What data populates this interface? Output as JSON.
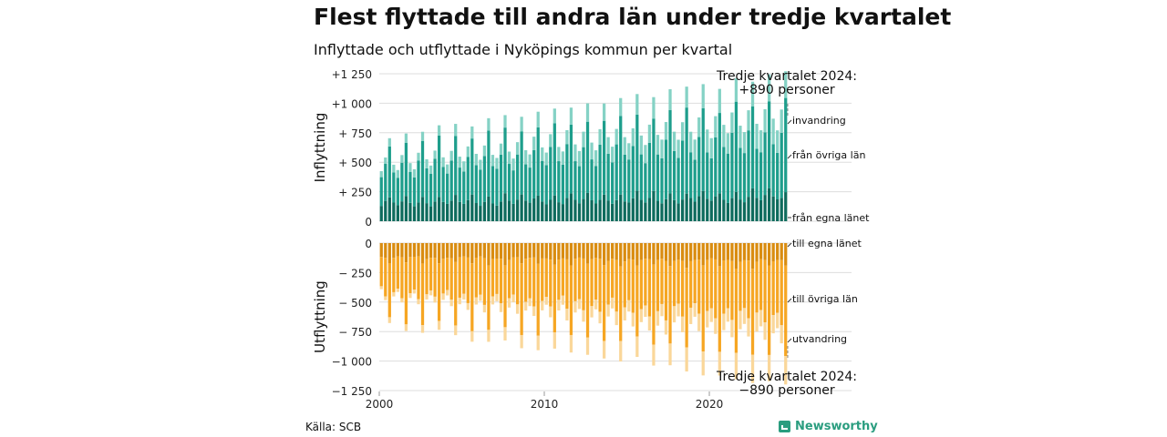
{
  "title": "Flest flyttade till andra län under tredje kvartalet",
  "subtitle": "Inflyttade och utflyttade i Nyköpings kommun per kvartal",
  "source": "Källa: SCB",
  "brand": "Newsworthy",
  "colors": {
    "invandring": "#85d2c5",
    "fran_ovriga_lan": "#1e9e8c",
    "fran_egna_lanet": "#0e6b5d",
    "till_egna_lanet": "#d98c10",
    "till_ovriga_lan": "#f6a623",
    "utvandring": "#fad79a",
    "grid": "#dddddd"
  },
  "chart_data": {
    "type": "bar",
    "stacked": true,
    "x_start": "2000 Q1",
    "x_end": "2024 Q3",
    "frequency": "quarterly",
    "xticks": [
      "2000",
      "2010",
      "2020"
    ],
    "panels": [
      {
        "ylabel": "Inflyttning",
        "ylim": [
          0,
          1250
        ],
        "yticks": [
          "0",
          "+ 250",
          "+ 500",
          "+ 750",
          "+1 000",
          "+1 250"
        ],
        "series": [
          {
            "name": "från egna länet",
            "seasonal": [
              130,
              160,
              200,
              150
            ],
            "trend_start": 120,
            "trend_end": 160
          },
          {
            "name": "från övriga län",
            "seasonal": [
              240,
              320,
              440,
              260
            ],
            "trend_start": 240,
            "trend_end": 420
          },
          {
            "name": "invandring",
            "seasonal": [
              55,
              55,
              65,
              60
            ],
            "trend_start": 40,
            "trend_end": 140
          }
        ],
        "annotation": "Tredje kvartalet 2024:\n+890 personer"
      },
      {
        "ylabel": "Utflyttning",
        "ylim": [
          -1250,
          0
        ],
        "yticks": [
          "0",
          "− 250",
          "− 500",
          "− 750",
          "−1 000",
          "−1 250"
        ],
        "series": [
          {
            "name": "till egna länet",
            "seasonal": [
              -115,
              -120,
              -165,
              -125
            ],
            "trend_start": -120,
            "trend_end": -150
          },
          {
            "name": "till övriga län",
            "seasonal": [
              -265,
              -330,
              -470,
              -285
            ],
            "trend_start": -260,
            "trend_end": -420
          },
          {
            "name": "utvandring",
            "seasonal": [
              -25,
              -30,
              -45,
              -30
            ],
            "trend_start": -20,
            "trend_end": -110
          }
        ],
        "annotation": "Tredje kvartalet 2024:\n−890 personer"
      }
    ]
  }
}
